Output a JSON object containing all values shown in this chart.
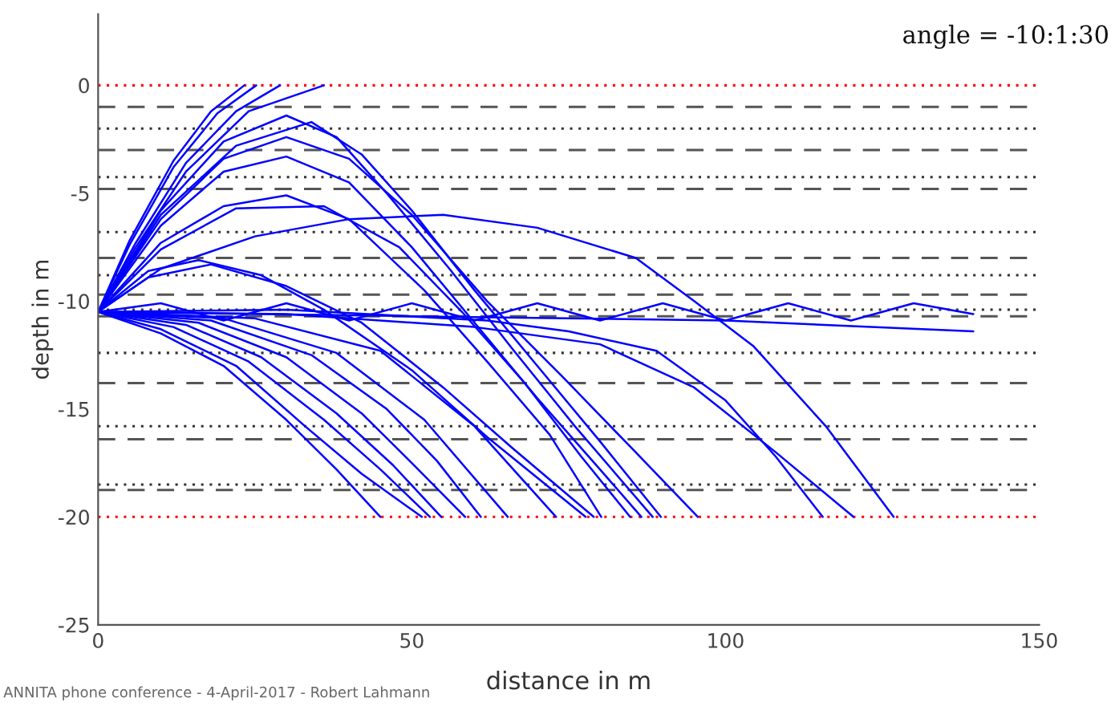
{
  "chart_data": {
    "type": "line",
    "xlabel": "distance in m",
    "ylabel": "depth in m",
    "annotations": [
      "angle = -10:1:30",
      "ANNITA phone conference - 4-April-2017 - Robert Lahmann"
    ],
    "xlim": [
      0,
      150
    ],
    "ylim": [
      -25,
      3.3
    ],
    "xticks": [
      0,
      50,
      100,
      150
    ],
    "yticks": [
      -25,
      -20,
      -15,
      -10,
      -5,
      0
    ],
    "grid": false,
    "legend": false,
    "marker": "none",
    "line_style": "solid",
    "ref_lines": [
      {
        "axis": "y",
        "value": 0,
        "color": "#ff0000",
        "line_style": "dotted"
      },
      {
        "axis": "y",
        "value": -20,
        "color": "#ff0000",
        "line_style": "dotted"
      },
      {
        "axis": "y",
        "value": -1,
        "color": "#555555",
        "line_style": "dashed"
      },
      {
        "axis": "y",
        "value": -3,
        "color": "#555555",
        "line_style": "dashed"
      },
      {
        "axis": "y",
        "value": -4.8,
        "color": "#555555",
        "line_style": "dashed"
      },
      {
        "axis": "y",
        "value": -8,
        "color": "#555555",
        "line_style": "dashed"
      },
      {
        "axis": "y",
        "value": -9.7,
        "color": "#555555",
        "line_style": "dashed"
      },
      {
        "axis": "y",
        "value": -10.7,
        "color": "#555555",
        "line_style": "dashed"
      },
      {
        "axis": "y",
        "value": -13.8,
        "color": "#555555",
        "line_style": "dashed"
      },
      {
        "axis": "y",
        "value": -16.4,
        "color": "#555555",
        "line_style": "dashed"
      },
      {
        "axis": "y",
        "value": -18.75,
        "color": "#555555",
        "line_style": "dashed"
      },
      {
        "axis": "y",
        "value": -2,
        "color": "#333333",
        "line_style": "dotted"
      },
      {
        "axis": "y",
        "value": -4.25,
        "color": "#333333",
        "line_style": "dotted"
      },
      {
        "axis": "y",
        "value": -6.8,
        "color": "#333333",
        "line_style": "dotted"
      },
      {
        "axis": "y",
        "value": -8.8,
        "color": "#333333",
        "line_style": "dotted"
      },
      {
        "axis": "y",
        "value": -10.4,
        "color": "#333333",
        "line_style": "dotted"
      },
      {
        "axis": "y",
        "value": -12.4,
        "color": "#333333",
        "line_style": "dotted"
      },
      {
        "axis": "y",
        "value": -15.8,
        "color": "#333333",
        "line_style": "dotted"
      },
      {
        "axis": "y",
        "value": -18.5,
        "color": "#333333",
        "line_style": "dotted"
      }
    ],
    "series": [
      {
        "color": "#0000ff",
        "x": [
          0,
          5,
          12,
          18,
          23.3
        ],
        "values": [
          -10.5,
          -7.2,
          -3.5,
          -1.2,
          0
        ]
      },
      {
        "color": "#0000ff",
        "x": [
          0,
          5,
          12,
          19,
          25.2
        ],
        "values": [
          -10.5,
          -7.4,
          -3.8,
          -1.3,
          0
        ]
      },
      {
        "color": "#0000ff",
        "x": [
          0,
          6,
          14,
          22,
          29
        ],
        "values": [
          -10.5,
          -7.3,
          -3.6,
          -1.2,
          0
        ]
      },
      {
        "color": "#0000ff",
        "x": [
          0,
          6,
          14,
          24,
          36
        ],
        "values": [
          -10.5,
          -7.5,
          -4,
          -1.2,
          0
        ]
      },
      {
        "color": "#0000ff",
        "x": [
          0,
          10,
          20,
          30,
          38,
          45
        ],
        "values": [
          -10.5,
          -11.5,
          -13,
          -15.5,
          -17.8,
          -20
        ]
      },
      {
        "color": "#0000ff",
        "x": [
          0,
          10,
          22,
          33,
          42,
          51.6
        ],
        "values": [
          -10.5,
          -11.3,
          -13,
          -15.8,
          -18,
          -20
        ]
      },
      {
        "color": "#0000ff",
        "x": [
          0,
          12,
          24,
          36,
          45,
          52.9
        ],
        "values": [
          -10.5,
          -11.2,
          -12.8,
          -15.5,
          -17.8,
          -20
        ]
      },
      {
        "color": "#0000ff",
        "x": [
          0,
          14,
          26,
          38,
          47,
          54.7
        ],
        "values": [
          -10.5,
          -11.1,
          -12.6,
          -15.2,
          -17.6,
          -20
        ]
      },
      {
        "color": "#0000ff",
        "x": [
          0,
          16,
          30,
          42,
          50,
          58.5
        ],
        "values": [
          -10.5,
          -11,
          -12.6,
          -15.2,
          -17.5,
          -20
        ]
      },
      {
        "color": "#0000ff",
        "x": [
          0,
          18,
          34,
          46,
          54,
          61
        ],
        "values": [
          -10.5,
          -10.9,
          -12.5,
          -15,
          -17.4,
          -20
        ]
      },
      {
        "color": "#0000ff",
        "x": [
          0,
          20,
          38,
          52,
          65.3
        ],
        "values": [
          -10.5,
          -10.8,
          -12.4,
          -15.5,
          -20
        ]
      },
      {
        "color": "#0000ff",
        "x": [
          0,
          25,
          45,
          60,
          73
        ],
        "values": [
          -10.5,
          -10.8,
          -12.3,
          -15.8,
          -20
        ]
      },
      {
        "color": "#0000ff",
        "x": [
          0,
          8,
          16,
          26,
          36,
          50,
          62,
          77.7
        ],
        "values": [
          -10.5,
          -8.6,
          -8.1,
          -8.8,
          -10.4,
          -13.2,
          -16.3,
          -20
        ]
      },
      {
        "color": "#0000ff",
        "x": [
          0,
          8,
          18,
          30,
          42,
          55,
          66,
          79
        ],
        "values": [
          -10.5,
          -8.9,
          -8.3,
          -9.3,
          -11,
          -14,
          -16.8,
          -20
        ]
      },
      {
        "color": "#0000ff",
        "x": [
          0,
          10,
          20,
          30,
          40,
          52,
          62,
          72,
          80.2
        ],
        "values": [
          -10.5,
          -7.3,
          -5.6,
          -5.1,
          -6.2,
          -9.5,
          -12.8,
          -16.2,
          -20
        ]
      },
      {
        "color": "#0000ff",
        "x": [
          0,
          10,
          22,
          36,
          48,
          58,
          68,
          77,
          84.8
        ],
        "values": [
          -10.5,
          -7.6,
          -5.7,
          -5.6,
          -7.5,
          -10.5,
          -13.8,
          -17.2,
          -20
        ]
      },
      {
        "color": "#0000ff",
        "x": [
          0,
          10,
          20,
          30,
          40,
          50,
          60,
          70,
          80,
          86.6
        ],
        "values": [
          -10.5,
          -6.5,
          -4,
          -3.3,
          -4.5,
          -7.5,
          -11,
          -14.5,
          -17.8,
          -20
        ]
      },
      {
        "color": "#0000ff",
        "x": [
          0,
          10,
          20,
          30,
          38,
          46,
          56,
          66,
          76,
          88.4
        ],
        "values": [
          -10.5,
          -5.8,
          -2.6,
          -1.4,
          -2.4,
          -5,
          -8.5,
          -12.2,
          -15.8,
          -20
        ]
      },
      {
        "color": "#0000ff",
        "x": [
          0,
          10,
          22,
          34,
          42,
          50,
          60,
          70,
          80,
          89.7
        ],
        "values": [
          -10.5,
          -6,
          -2.8,
          -1.7,
          -3.2,
          -5.8,
          -9.5,
          -13,
          -16.5,
          -20
        ]
      },
      {
        "color": "#0000ff",
        "x": [
          0,
          10,
          20,
          30,
          40,
          50,
          62,
          74,
          85,
          95.6
        ],
        "values": [
          -10.5,
          -6.2,
          -3.4,
          -2.4,
          -3.4,
          -6,
          -10,
          -13.5,
          -16.8,
          -20
        ]
      },
      {
        "color": "#0000ff",
        "x": [
          0,
          10,
          25,
          40,
          55,
          70,
          85.7,
          95,
          104.5,
          116,
          126.8
        ],
        "values": [
          -10.5,
          -8.5,
          -7,
          -6.2,
          -6,
          -6.6,
          -8,
          -10,
          -12.1,
          -15.8,
          -20
        ]
      },
      {
        "color": "#0000ff",
        "x": [
          0,
          30,
          62,
          75,
          89,
          100,
          108,
          115.5
        ],
        "values": [
          -10.5,
          -10.4,
          -10.9,
          -11.4,
          -12.3,
          -14.6,
          -17.2,
          -20
        ]
      },
      {
        "color": "#0000ff",
        "x": [
          0,
          30,
          60,
          80,
          95,
          108,
          120.4
        ],
        "values": [
          -10.5,
          -10.6,
          -11.2,
          -12,
          -14,
          -17,
          -20
        ]
      },
      {
        "color": "#0000ff",
        "x": [
          0,
          10,
          20,
          30,
          40,
          50,
          60,
          70,
          80,
          90,
          100,
          110,
          120,
          130,
          139.5
        ],
        "values": [
          -10.5,
          -10.1,
          -10.9,
          -10.1,
          -10.9,
          -10.1,
          -10.9,
          -10.1,
          -10.9,
          -10.1,
          -10.9,
          -10.1,
          -10.9,
          -10.1,
          -10.6
        ]
      },
      {
        "color": "#0000ff",
        "x": [
          0,
          50,
          100,
          139.5
        ],
        "values": [
          -10.5,
          -10.7,
          -10.9,
          -11.4
        ]
      }
    ]
  }
}
